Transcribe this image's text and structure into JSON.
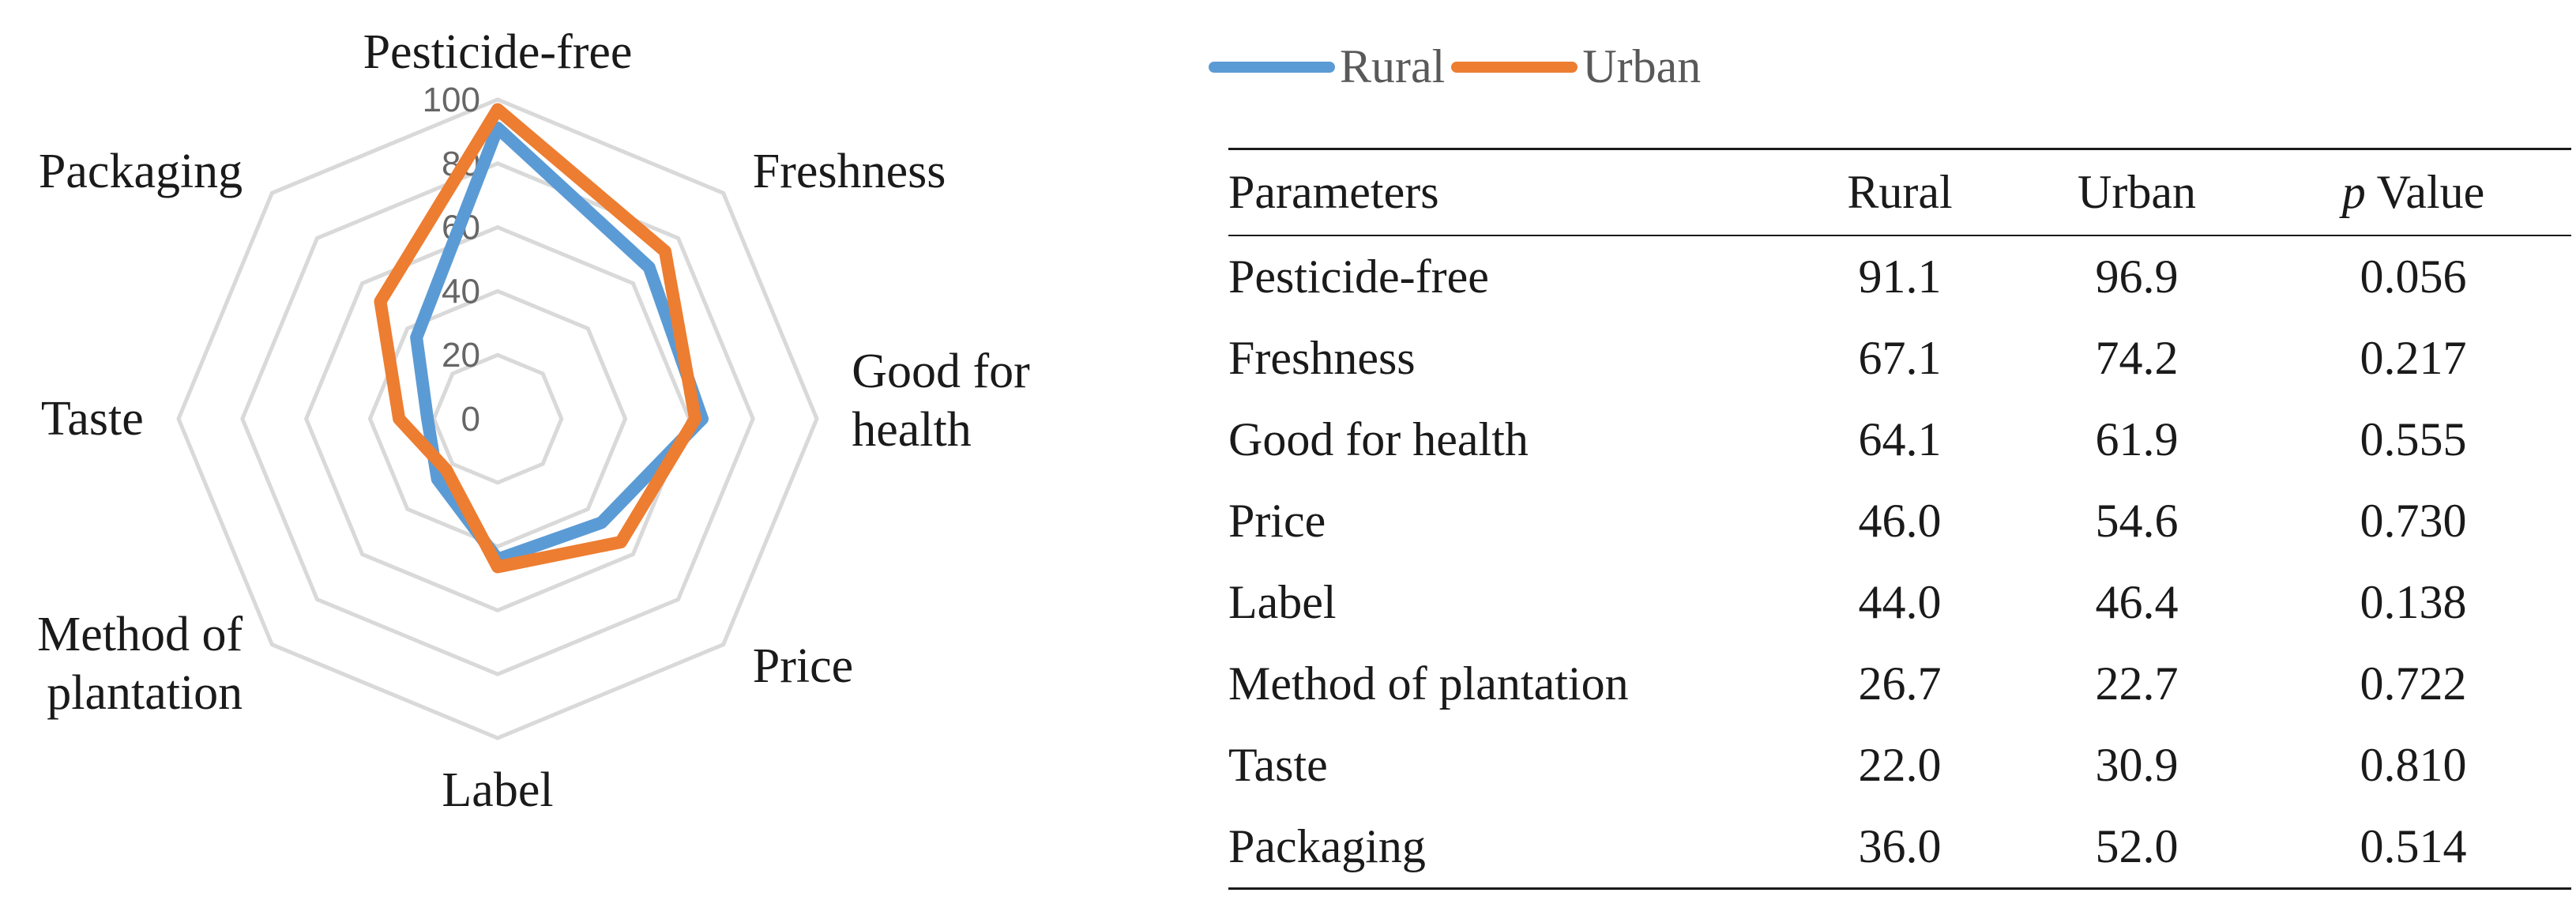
{
  "chart_data": [
    {
      "type": "radar",
      "axes": [
        "Pesticide-free",
        "Freshness",
        "Good for health",
        "Price",
        "Label",
        "Method of plantation",
        "Taste",
        "Packaging"
      ],
      "axis_labels": [
        [
          "Pesticide-free"
        ],
        [
          "Freshness"
        ],
        [
          "Good for",
          "health"
        ],
        [
          "Price"
        ],
        [
          "Label"
        ],
        [
          "Method of",
          "plantation"
        ],
        [
          "Taste"
        ],
        [
          "Packaging"
        ]
      ],
      "radial_ticks": [
        "0",
        "20",
        "40",
        "60",
        "80",
        "100"
      ],
      "radial_range": [
        0,
        100
      ],
      "series": [
        {
          "name": "Rural",
          "color": "#5B9BD5",
          "values": [
            91.1,
            67.1,
            64.1,
            46.0,
            44.0,
            26.7,
            22.0,
            36.0
          ]
        },
        {
          "name": "Urban",
          "color": "#ED7D31",
          "values": [
            96.9,
            74.2,
            61.9,
            54.6,
            46.4,
            22.7,
            30.9,
            52.0
          ]
        }
      ],
      "legend": {
        "placement": "top",
        "items": [
          "Rural",
          "Urban"
        ]
      }
    },
    {
      "type": "table",
      "columns": [
        "Parameters",
        "Rural",
        "Urban",
        "p Value"
      ],
      "p_label": {
        "italic": "p",
        "rest": "Value"
      },
      "rows": [
        [
          "Pesticide-free",
          "91.1",
          "96.9",
          "0.056"
        ],
        [
          "Freshness",
          "67.1",
          "74.2",
          "0.217"
        ],
        [
          "Good for health",
          "64.1",
          "61.9",
          "0.555"
        ],
        [
          "Price",
          "46.0",
          "54.6",
          "0.730"
        ],
        [
          "Label",
          "44.0",
          "46.4",
          "0.138"
        ],
        [
          "Method of plantation",
          "26.7",
          "22.7",
          "0.722"
        ],
        [
          "Taste",
          "22.0",
          "30.9",
          "0.810"
        ],
        [
          "Packaging",
          "36.0",
          "52.0",
          "0.514"
        ]
      ]
    }
  ]
}
